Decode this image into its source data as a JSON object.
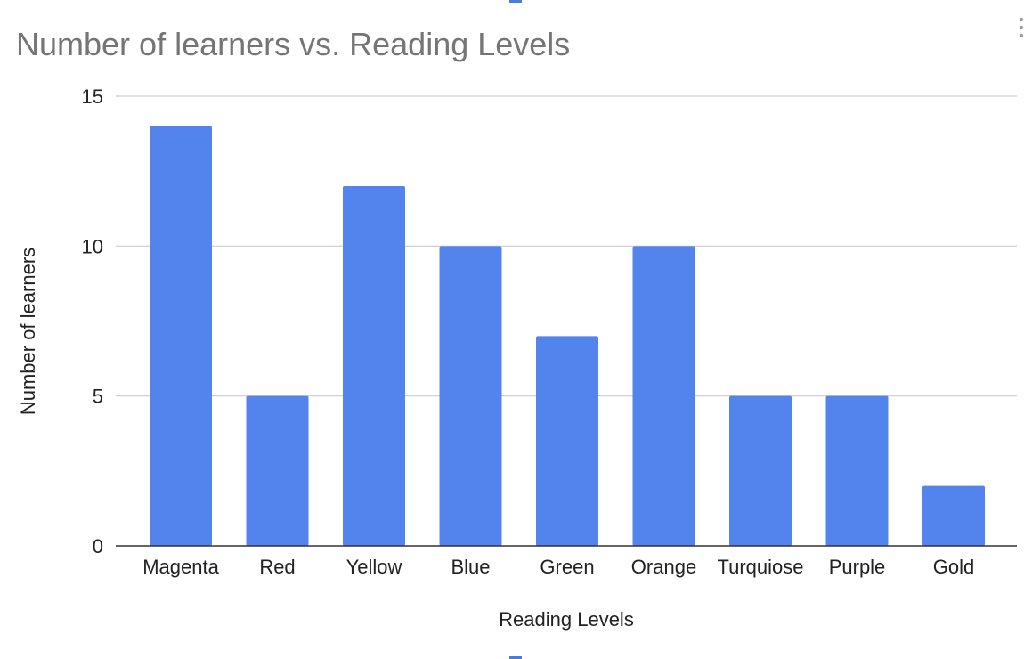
{
  "chart_data": {
    "type": "bar",
    "title": "Number of learners  vs. Reading Levels",
    "xlabel": "Reading Levels",
    "ylabel": "Number of learners",
    "categories": [
      "Magenta",
      "Red",
      "Yellow",
      "Blue",
      "Green",
      "Orange",
      "Turquiose",
      "Purple",
      "Gold"
    ],
    "values": [
      14,
      5,
      12,
      10,
      7,
      10,
      5,
      5,
      2
    ],
    "ylim": [
      0,
      15
    ],
    "yticks": [
      "0",
      "5",
      "10",
      "15"
    ],
    "grid": true,
    "legend": "none",
    "colors": {
      "bar": "#5383ec"
    }
  }
}
